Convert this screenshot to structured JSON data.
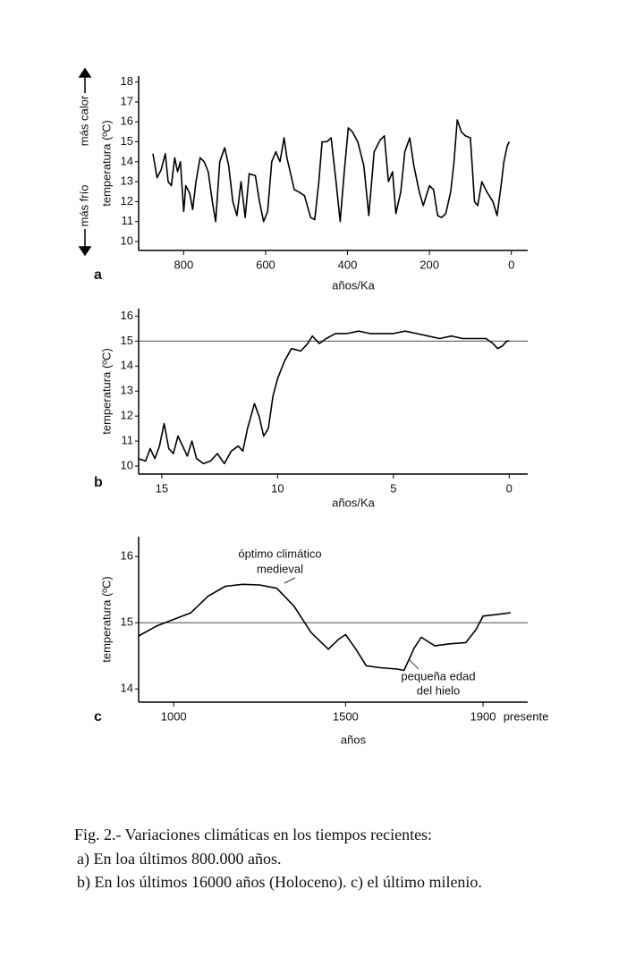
{
  "chart_data": [
    {
      "type": "line",
      "panel": "a",
      "ylabel": "temperatura (ºC)",
      "xlabel": "años/Ka",
      "annotations": [
        "más calor",
        "más frío"
      ],
      "x": [
        875,
        865,
        855,
        845,
        838,
        830,
        822,
        815,
        808,
        800,
        795,
        785,
        778,
        770,
        760,
        750,
        740,
        730,
        722,
        712,
        700,
        690,
        680,
        670,
        660,
        650,
        640,
        625,
        615,
        605,
        595,
        585,
        575,
        565,
        555,
        548,
        540,
        530,
        520,
        505,
        490,
        480,
        470,
        462,
        450,
        440,
        428,
        418,
        408,
        398,
        388,
        375,
        360,
        348,
        335,
        320,
        310,
        300,
        290,
        282,
        270,
        260,
        248,
        238,
        225,
        215,
        200,
        190,
        180,
        170,
        160,
        148,
        140,
        132,
        122,
        112,
        100,
        90,
        82,
        72,
        60,
        45,
        35,
        25,
        18,
        10,
        5
      ],
      "values": [
        14.4,
        13.2,
        13.6,
        14.4,
        13.0,
        12.8,
        14.2,
        13.5,
        14.0,
        11.5,
        12.8,
        12.4,
        11.6,
        13.0,
        14.2,
        14.0,
        13.5,
        12.0,
        11.0,
        14.0,
        14.7,
        13.8,
        12.0,
        11.3,
        13.0,
        11.2,
        13.4,
        13.3,
        12.0,
        11.0,
        11.5,
        14.0,
        14.5,
        14.0,
        15.2,
        14.2,
        13.5,
        12.6,
        12.5,
        12.3,
        11.2,
        11.1,
        13.0,
        15.0,
        15.0,
        15.2,
        13.0,
        11.0,
        13.5,
        15.7,
        15.5,
        15.0,
        13.8,
        11.3,
        14.5,
        15.1,
        15.3,
        13.0,
        13.5,
        11.4,
        12.5,
        14.5,
        15.2,
        13.8,
        12.5,
        11.8,
        12.8,
        12.6,
        11.3,
        11.2,
        11.4,
        12.5,
        14.0,
        16.1,
        15.5,
        15.3,
        15.2,
        12.0,
        11.8,
        13.0,
        12.5,
        12.0,
        11.3,
        12.8,
        14.0,
        14.8,
        15.0
      ],
      "color": "#000000",
      "xlim": [
        910,
        -40
      ],
      "ylim": [
        9.55,
        18.3
      ],
      "xticks": [
        800,
        600,
        400,
        200,
        0
      ],
      "yticks": [
        10,
        11,
        12,
        13,
        14,
        15,
        16,
        17,
        18
      ]
    },
    {
      "type": "line",
      "panel": "b",
      "ylabel": "temperatura (ºC)",
      "xlabel": "años/Ka",
      "annotations": [],
      "x": [
        16,
        15.7,
        15.5,
        15.3,
        15.1,
        14.9,
        14.7,
        14.5,
        14.3,
        14.1,
        13.9,
        13.7,
        13.5,
        13.2,
        12.9,
        12.6,
        12.3,
        12.0,
        11.7,
        11.5,
        11.3,
        11.0,
        10.8,
        10.6,
        10.4,
        10.2,
        10.0,
        9.7,
        9.4,
        9.0,
        8.7,
        8.5,
        8.2,
        7.9,
        7.5,
        7.0,
        6.5,
        6.0,
        5.5,
        5.0,
        4.5,
        4.0,
        3.5,
        3.0,
        2.5,
        2.0,
        1.5,
        1.0,
        0.7,
        0.5,
        0.3,
        0.1,
        0
      ],
      "values": [
        10.3,
        10.2,
        10.7,
        10.3,
        10.8,
        11.7,
        10.7,
        10.5,
        11.2,
        10.8,
        10.4,
        11.0,
        10.3,
        10.1,
        10.2,
        10.5,
        10.1,
        10.6,
        10.8,
        10.6,
        11.5,
        12.5,
        12.0,
        11.2,
        11.5,
        12.8,
        13.5,
        14.2,
        14.7,
        14.6,
        14.9,
        15.2,
        14.9,
        15.1,
        15.3,
        15.3,
        15.4,
        15.3,
        15.3,
        15.3,
        15.4,
        15.3,
        15.2,
        15.1,
        15.2,
        15.1,
        15.1,
        15.1,
        14.9,
        14.7,
        14.8,
        15.0,
        15.0
      ],
      "color": "#000000",
      "xlim": [
        16,
        -0.8
      ],
      "ylim": [
        9.68,
        16.3
      ],
      "hline": 15,
      "xticks": [
        15,
        10,
        5,
        0
      ],
      "yticks": [
        10,
        11,
        12,
        13,
        14,
        15,
        16
      ]
    },
    {
      "type": "line",
      "panel": "c",
      "ylabel": "temperatura (ºC)",
      "xlabel": "años",
      "annotations": [
        "óptimo climático",
        "medieval",
        "pequeña edad",
        "del hielo",
        "presente"
      ],
      "x": [
        898,
        950,
        1000,
        1050,
        1100,
        1150,
        1200,
        1250,
        1300,
        1350,
        1400,
        1450,
        1480,
        1500,
        1530,
        1560,
        1600,
        1650,
        1670,
        1700,
        1720,
        1760,
        1800,
        1850,
        1880,
        1900,
        1950,
        1980
      ],
      "values": [
        14.8,
        14.95,
        15.05,
        15.15,
        15.4,
        15.55,
        15.58,
        15.57,
        15.52,
        15.25,
        14.85,
        14.6,
        14.75,
        14.82,
        14.6,
        14.35,
        14.32,
        14.3,
        14.28,
        14.62,
        14.78,
        14.65,
        14.68,
        14.7,
        14.9,
        15.1,
        15.13,
        15.15
      ],
      "color": "#000000",
      "xlim": [
        898,
        2030
      ],
      "ylim": [
        13.8,
        16.3
      ],
      "hline": 15,
      "xticks": [
        1000,
        1500,
        1900
      ],
      "yticks": [
        14,
        15,
        16
      ]
    }
  ],
  "caption": [
    "Fig. 2.- Variaciones climáticas en los tiempos recientes:",
    "a) En loa últimos 800.000 años.",
    "b) En los últimos 16000 años (Holoceno). c) el último milenio."
  ]
}
